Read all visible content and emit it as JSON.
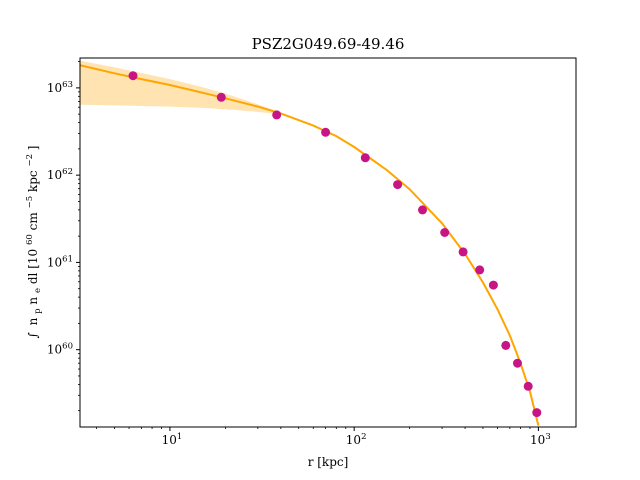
{
  "chart_data": {
    "type": "scatter",
    "title": "PSZ2G049.69-49.46",
    "xlabel": "r [kpc]",
    "ylabel": {
      "integral": "∫",
      "main": "n",
      "sub_p": "p",
      "n": "n",
      "sub_e": "e",
      "dl": "dl [10",
      "exp_60": "60",
      "cm": "cm",
      "exp_m5": "−5",
      "kpc": "kpc",
      "exp_m2": "−2",
      "close": "]"
    },
    "x_scale": "log",
    "y_scale": "log",
    "xlim": [
      3.25,
      1600
    ],
    "ylim": [
      1.3e+59,
      2.2e+63
    ],
    "x_ticks": [
      {
        "value": 10,
        "base": "10",
        "exp": "1"
      },
      {
        "value": 100,
        "base": "10",
        "exp": "2"
      },
      {
        "value": 1000,
        "base": "10",
        "exp": "3"
      }
    ],
    "y_ticks": [
      {
        "value": 1e+60,
        "base": "10",
        "exp": "60"
      },
      {
        "value": 1e+61,
        "base": "10",
        "exp": "61"
      },
      {
        "value": 1e+62,
        "base": "10",
        "exp": "62"
      },
      {
        "value": 1e+63,
        "base": "10",
        "exp": "63"
      }
    ],
    "points": {
      "name": "data",
      "color": "#c71585",
      "x": [
        6.3,
        19,
        38,
        70,
        115,
        172,
        235,
        310,
        390,
        480,
        570,
        665,
        770,
        880,
        980
      ],
      "y": [
        1.38e+63,
        7.8e+62,
        4.9e+62,
        3.1e+62,
        1.58e+62,
        7.8e+61,
        4e+61,
        2.2e+61,
        1.32e+61,
        8.2e+60,
        5.5e+60,
        1.12e+60,
        7e+59,
        3.8e+59,
        1.9e+59
      ]
    },
    "model": {
      "name": "best-fit",
      "color": "#ffa500",
      "x": [
        3.25,
        5,
        7,
        10,
        15,
        20,
        30,
        40,
        60,
        80,
        100,
        150,
        200,
        300,
        400,
        500,
        600,
        700,
        800,
        900,
        1000
      ],
      "y": [
        1.82e+63,
        1.47e+63,
        1.26e+63,
        1.08e+63,
        8.8e+62,
        7.6e+62,
        6.1e+62,
        5.1e+62,
        3.7e+62,
        2.8e+62,
        2.1e+62,
        1.15e+62,
        6.9e+61,
        2.8e+61,
        1.25e+61,
        5.9e+60,
        2.9e+60,
        1.45e+60,
        7e+59,
        3.3e+59,
        1.35e+59
      ]
    },
    "band": {
      "color": "#ffa500",
      "opacity": 0.3,
      "x": [
        3.25,
        5,
        7,
        10,
        15,
        20,
        30,
        40,
        60,
        80
      ],
      "y_upper": [
        2.05e+63,
        1.72e+63,
        1.48e+63,
        1.26e+63,
        1.02e+63,
        8.6e+62,
        6.5e+62,
        5.2e+62,
        3.75e+62,
        2.8e+62
      ],
      "y_lower": [
        6.4e+62,
        6.3e+62,
        6.2e+62,
        6.1e+62,
        5.9e+62,
        5.7e+62,
        5.3e+62,
        4.95e+62,
        3.65e+62,
        2.8e+62
      ]
    }
  }
}
